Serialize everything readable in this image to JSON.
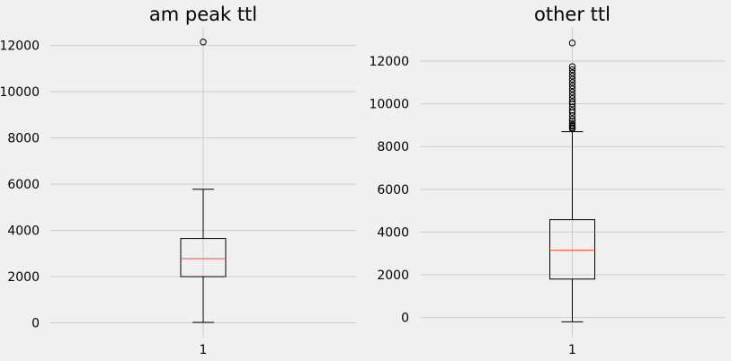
{
  "chart_data": [
    {
      "type": "box",
      "title": "am peak ttl",
      "xlabel": "",
      "ylabel": "",
      "categories": [
        "1"
      ],
      "ylim": [
        -600,
        12800
      ],
      "yticks": [
        0,
        2000,
        4000,
        6000,
        8000,
        10000,
        12000
      ],
      "grid": true,
      "box": {
        "whisker_low": 20,
        "q1": 2000,
        "median": 2780,
        "q3": 3650,
        "whisker_high": 5780
      },
      "outliers": [
        12150
      ]
    },
    {
      "type": "box",
      "title": "other ttl",
      "xlabel": "",
      "ylabel": "",
      "categories": [
        "1"
      ],
      "ylim": [
        -900,
        13600
      ],
      "yticks": [
        0,
        2000,
        4000,
        6000,
        8000,
        10000,
        12000
      ],
      "grid": true,
      "box": {
        "whisker_low": -200,
        "q1": 1800,
        "median": 3150,
        "q3": 4580,
        "whisker_high": 8700
      },
      "outliers": [
        8830,
        8880,
        8950,
        9000,
        9100,
        9200,
        9300,
        9450,
        9600,
        9700,
        9850,
        10000,
        10100,
        10250,
        10400,
        10550,
        10700,
        10850,
        11000,
        11150,
        11300,
        11450,
        11600,
        11750,
        12850
      ]
    }
  ],
  "colors": {
    "background": "#f0f0f0",
    "grid": "#cbcbcb",
    "box": "#000000",
    "median": "#fc4f30"
  }
}
